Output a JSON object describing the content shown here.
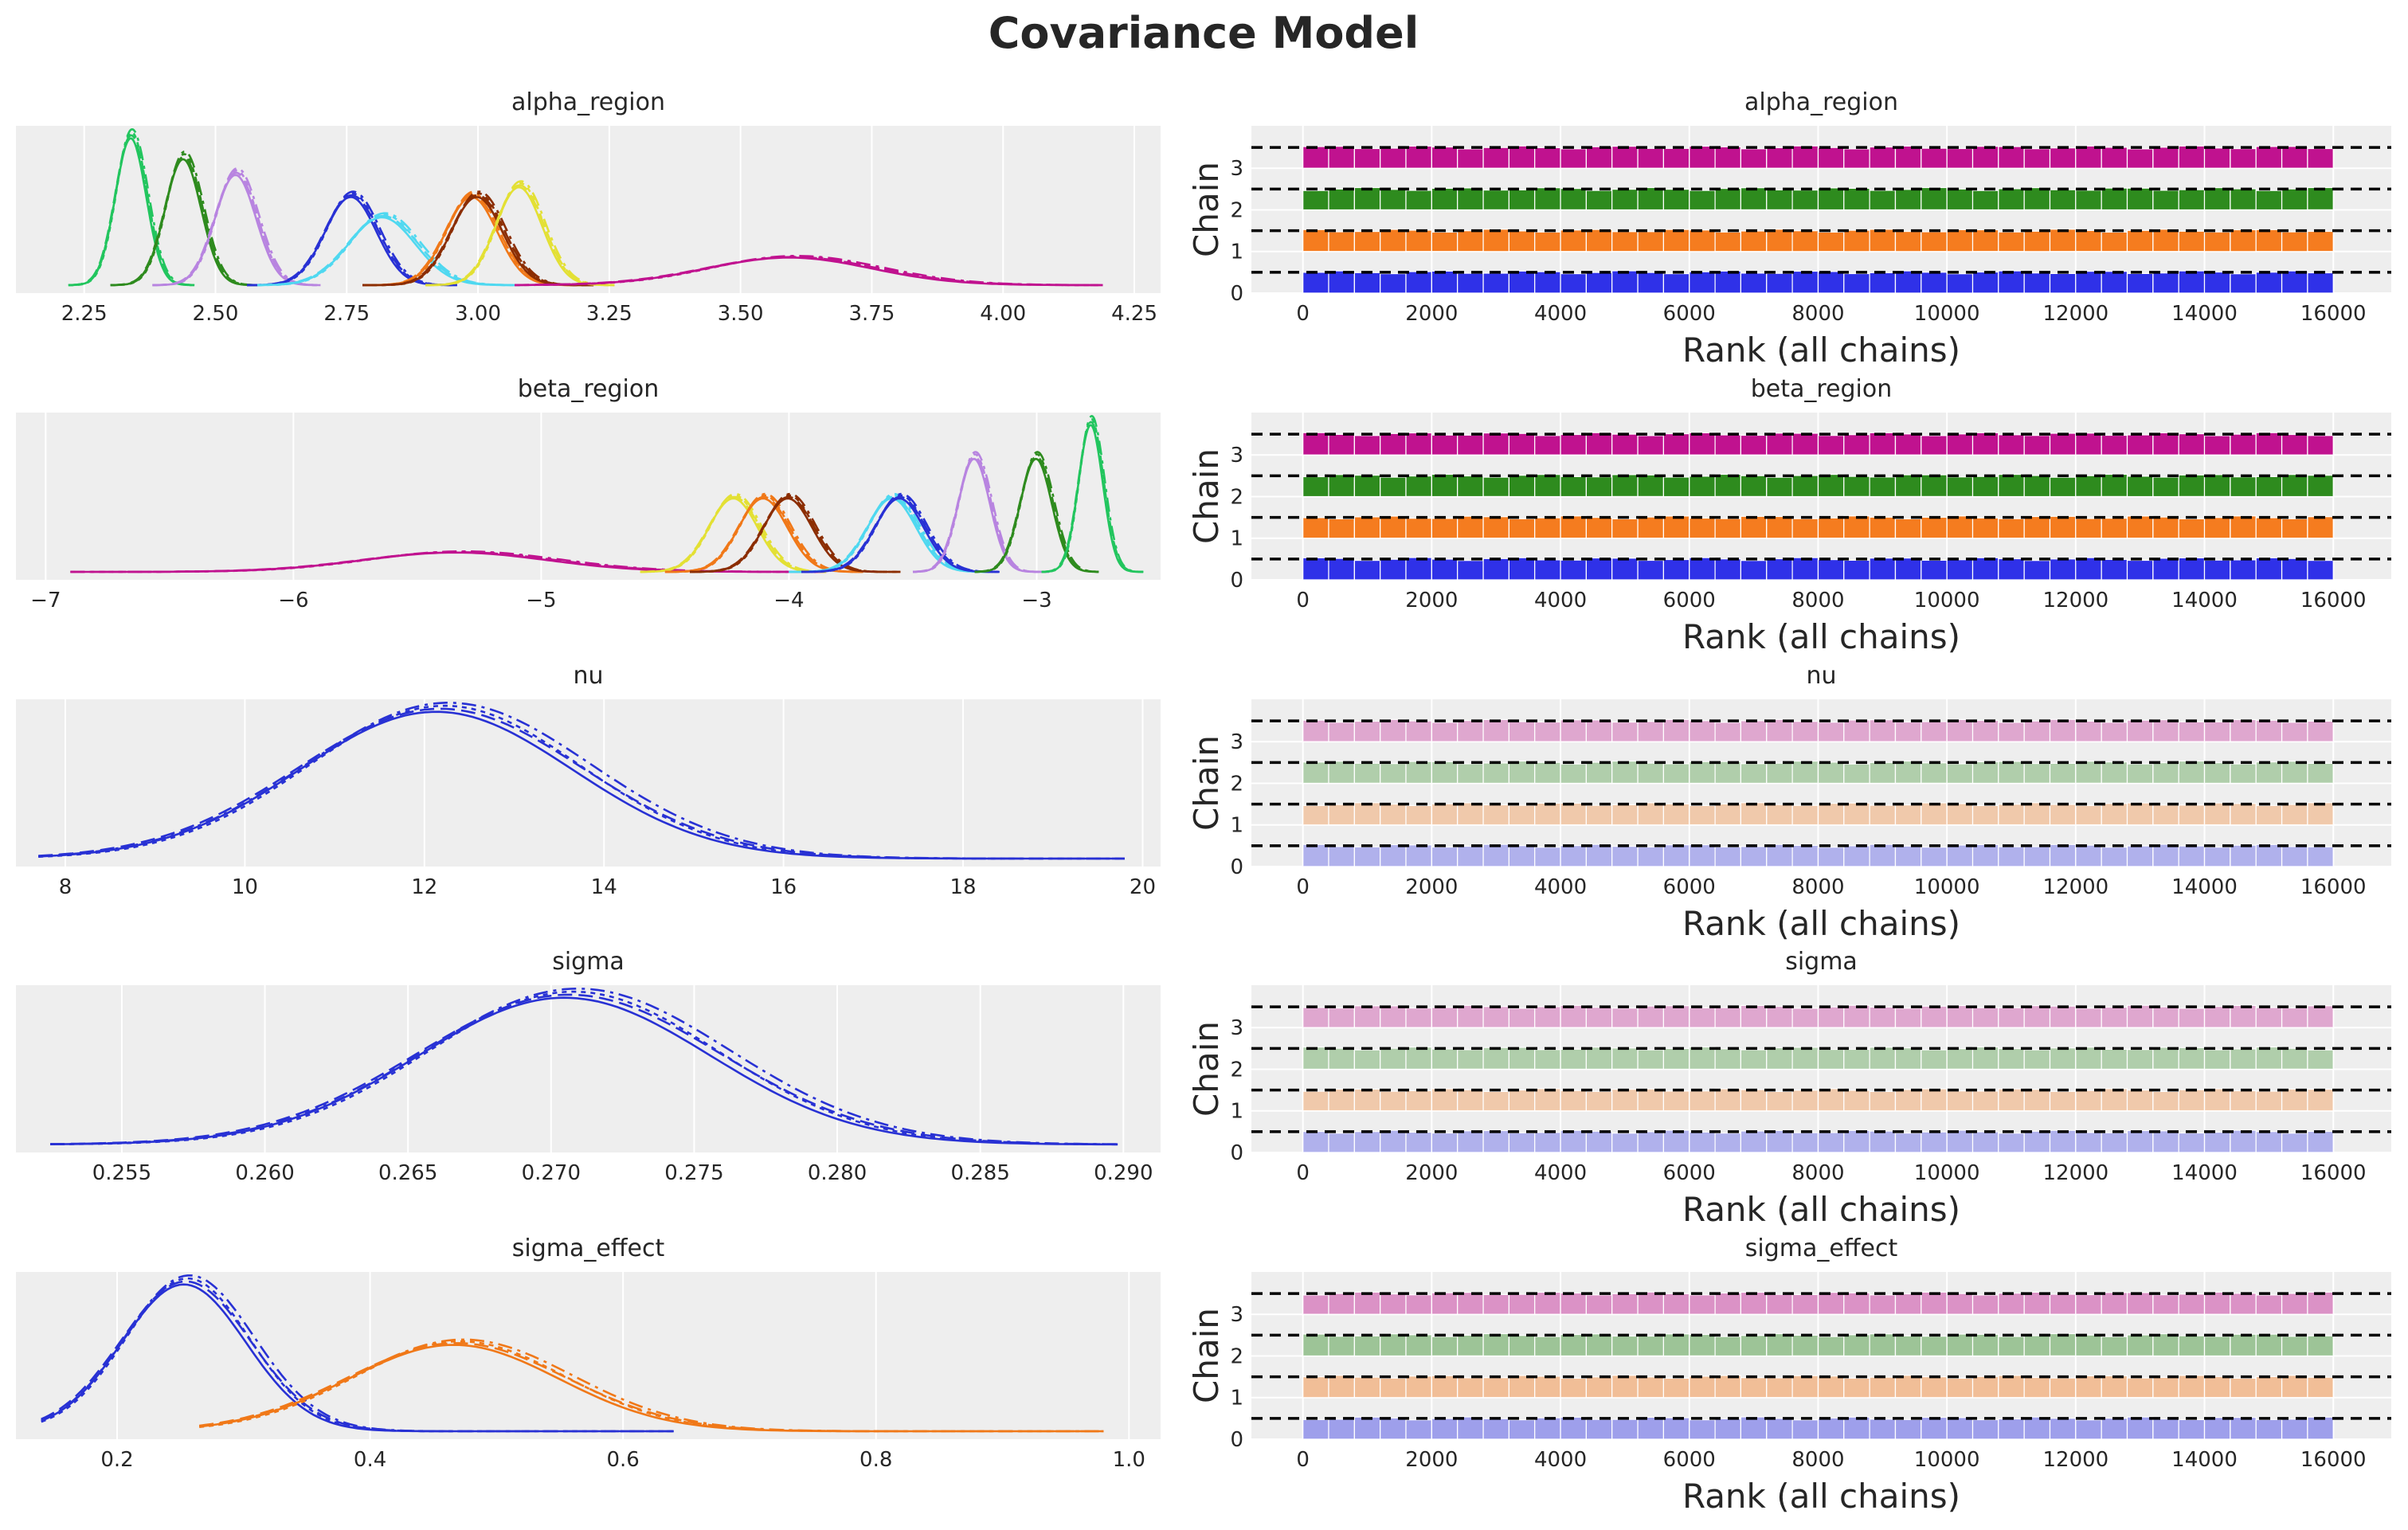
{
  "figure": {
    "title": "Covariance Model"
  },
  "chart_data": [
    {
      "type": "line",
      "title": "alpha_region",
      "xticks": [
        "2.25",
        "2.50",
        "2.75",
        "3.00",
        "3.25",
        "3.50",
        "3.75",
        "4.00",
        "4.25"
      ],
      "xlim": [
        2.12,
        4.3
      ],
      "series": [
        {
          "color": "#22c55e",
          "mean": 2.34,
          "sd": 0.03,
          "range": [
            2.22,
            2.46
          ]
        },
        {
          "color": "#2e8b1e",
          "mean": 2.44,
          "sd": 0.035,
          "range": [
            2.3,
            2.58
          ]
        },
        {
          "color": "#b884e0",
          "mean": 2.54,
          "sd": 0.04,
          "range": [
            2.38,
            2.7
          ]
        },
        {
          "color": "#2831d4",
          "mean": 2.76,
          "sd": 0.05,
          "range": [
            2.56,
            2.96
          ]
        },
        {
          "color": "#4fd8f0",
          "mean": 2.82,
          "sd": 0.065,
          "range": [
            2.58,
            3.08
          ]
        },
        {
          "color": "#f07818",
          "mean": 2.99,
          "sd": 0.05,
          "range": [
            2.78,
            3.2
          ]
        },
        {
          "color": "#8b2d00",
          "mean": 3.0,
          "sd": 0.05,
          "range": [
            2.78,
            3.22
          ]
        },
        {
          "color": "#e3e034",
          "mean": 3.08,
          "sd": 0.045,
          "range": [
            2.9,
            3.26
          ]
        },
        {
          "color": "#c0128f",
          "mean": 3.6,
          "sd": 0.16,
          "range": [
            3.07,
            4.19
          ]
        }
      ]
    },
    {
      "type": "line",
      "title": "beta_region",
      "xticks": [
        "−7",
        "−6",
        "−5",
        "−4",
        "−3"
      ],
      "xlim": [
        -7.12,
        -2.5
      ],
      "series": [
        {
          "color": "#c0128f",
          "mean": -5.33,
          "sd": 0.38,
          "range": [
            -6.9,
            -3.85
          ]
        },
        {
          "color": "#e3e034",
          "mean": -4.22,
          "sd": 0.1,
          "range": [
            -4.6,
            -3.85
          ]
        },
        {
          "color": "#f07818",
          "mean": -4.1,
          "sd": 0.1,
          "range": [
            -4.5,
            -3.7
          ]
        },
        {
          "color": "#8b2d00",
          "mean": -4.0,
          "sd": 0.1,
          "range": [
            -4.4,
            -3.55
          ]
        },
        {
          "color": "#4fd8f0",
          "mean": -3.58,
          "sd": 0.1,
          "range": [
            -4.0,
            -3.2
          ]
        },
        {
          "color": "#2831d4",
          "mean": -3.55,
          "sd": 0.1,
          "range": [
            -3.95,
            -3.15
          ]
        },
        {
          "color": "#b884e0",
          "mean": -3.25,
          "sd": 0.065,
          "range": [
            -3.5,
            -2.95
          ]
        },
        {
          "color": "#2e8b1e",
          "mean": -3.0,
          "sd": 0.065,
          "range": [
            -3.25,
            -2.75
          ]
        },
        {
          "color": "#22c55e",
          "mean": -2.78,
          "sd": 0.05,
          "range": [
            -2.98,
            -2.57
          ]
        }
      ]
    },
    {
      "type": "line",
      "title": "nu",
      "xticks": [
        "8",
        "10",
        "12",
        "14",
        "16",
        "18",
        "20"
      ],
      "xlim": [
        7.45,
        20.2
      ],
      "series": [
        {
          "color": "#2831d4",
          "mean": 12.2,
          "sd": 1.55,
          "range": [
            7.7,
            19.8
          ]
        }
      ]
    },
    {
      "type": "line",
      "title": "sigma",
      "xticks": [
        "0.255",
        "0.260",
        "0.265",
        "0.270",
        "0.275",
        "0.280",
        "0.285",
        "0.290"
      ],
      "xlim": [
        0.2513,
        0.2913
      ],
      "series": [
        {
          "color": "#2831d4",
          "mean": 0.2707,
          "sd": 0.0052,
          "range": [
            0.2525,
            0.2898
          ]
        }
      ]
    },
    {
      "type": "line",
      "title": "sigma_effect",
      "xticks": [
        "0.2",
        "0.4",
        "0.6",
        "0.8",
        "1.0"
      ],
      "xlim": [
        0.12,
        1.025
      ],
      "series": [
        {
          "color": "#2831d4",
          "mean": 0.255,
          "sd": 0.05,
          "range": [
            0.14,
            0.64
          ]
        },
        {
          "color": "#f07818",
          "mean": 0.47,
          "sd": 0.085,
          "range": [
            0.265,
            0.98
          ]
        }
      ]
    },
    {
      "type": "bar",
      "title": "alpha_region",
      "xlabel": "Rank (all chains)",
      "ylabel": "Chain",
      "alpha": 1.0
    },
    {
      "type": "bar",
      "title": "beta_region",
      "xlabel": "Rank (all chains)",
      "ylabel": "Chain",
      "alpha": 1.0
    },
    {
      "type": "bar",
      "title": "nu",
      "xlabel": "Rank (all chains)",
      "ylabel": "Chain",
      "alpha": 0.32
    },
    {
      "type": "bar",
      "title": "sigma",
      "xlabel": "Rank (all chains)",
      "ylabel": "Chain",
      "alpha": 0.32
    },
    {
      "type": "bar",
      "title": "sigma_effect",
      "xlabel": "Rank (all chains)",
      "ylabel": "Chain",
      "alpha": 0.42
    }
  ],
  "rank_axis": {
    "xticks": [
      "0",
      "2000",
      "4000",
      "6000",
      "8000",
      "10000",
      "12000",
      "14000",
      "16000"
    ],
    "xlim": [
      -800,
      16900
    ],
    "yticks": [
      "0",
      "1",
      "2",
      "3"
    ],
    "chain_colors": [
      "#2f31e8",
      "#f57c1f",
      "#2e8b1e",
      "#c0128f"
    ]
  }
}
